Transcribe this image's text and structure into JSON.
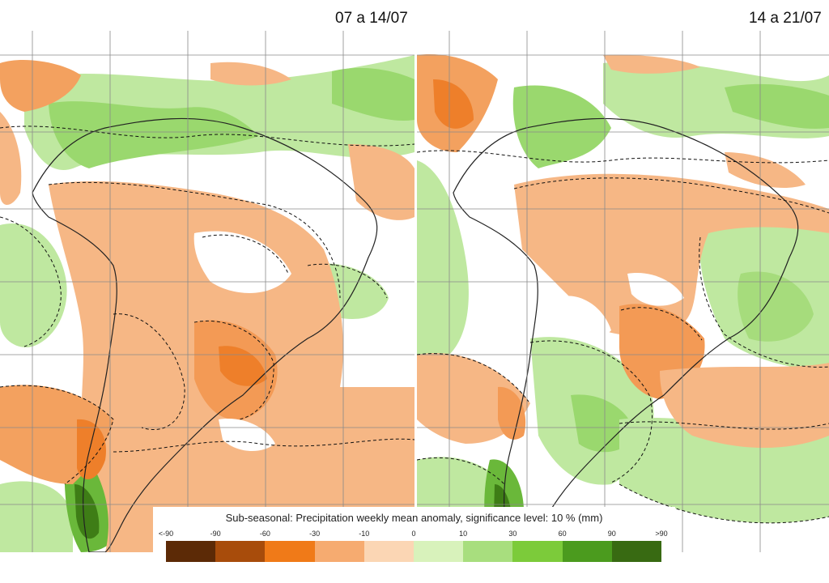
{
  "panels": [
    {
      "title": "07 a 14/07"
    },
    {
      "title": "14 a 21/07"
    }
  ],
  "legend": {
    "title": "Sub-seasonal: Precipitation weekly mean anomaly, significance level: 10 % (mm)",
    "ticks": [
      "<-90",
      "-90",
      "-60",
      "-30",
      "-10",
      "0",
      "10",
      "30",
      "60",
      "90",
      ">90"
    ],
    "colors": [
      "#5c2a06",
      "#a84c0b",
      "#f07a18",
      "#f6ab70",
      "#fbd6b4",
      "#d8f2bb",
      "#a8de7e",
      "#7ccb3a",
      "#4b9b1e",
      "#386a12"
    ]
  }
}
